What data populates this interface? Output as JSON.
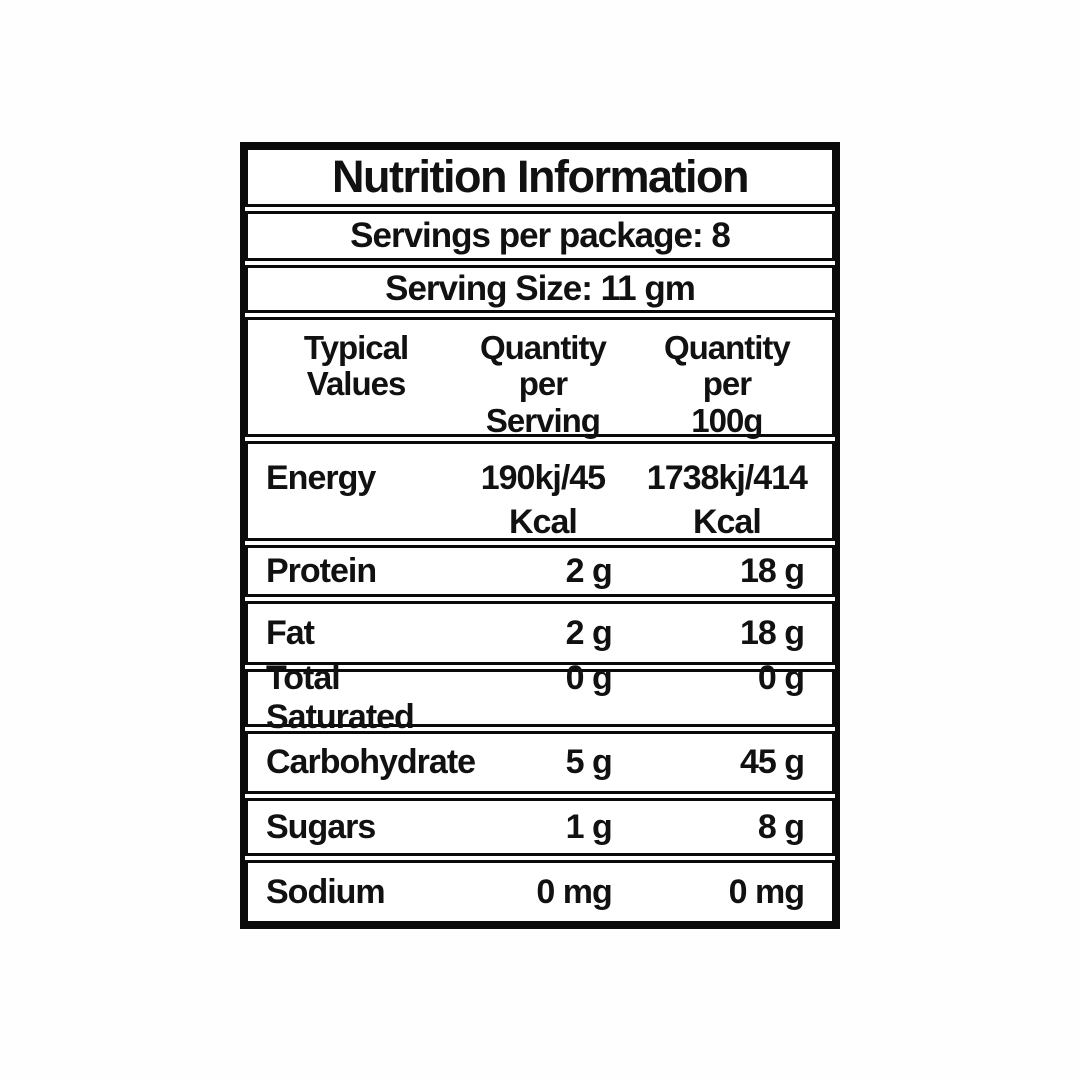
{
  "label": {
    "title": "Nutrition Information",
    "servings_per_package": "Servings per package: 8",
    "serving_size": "Serving Size: 11 gm",
    "header": {
      "col1_line1": "Typical",
      "col1_line2": "Values",
      "col2_line1": "Quantity",
      "col2_line2": "per",
      "col2_line3": "Serving",
      "col3_line1": "Quantity",
      "col3_line2": "per",
      "col3_line3": "100g"
    },
    "energy": {
      "name": "Energy",
      "per_serving_value": "190kj/45",
      "per_serving_unit": "Kcal",
      "per_100g_value": "1738kj/414",
      "per_100g_unit": "Kcal"
    },
    "rows": [
      {
        "name": "Protein",
        "per_serving": "2 g",
        "per_100g": "18 g"
      },
      {
        "name": "Fat",
        "per_serving": "2 g",
        "per_100g": "18 g"
      },
      {
        "name": "Total Saturated",
        "per_serving": "0 g",
        "per_100g": "0 g"
      },
      {
        "name": "Carbohydrate",
        "per_serving": "5 g",
        "per_100g": "45 g"
      },
      {
        "name": "Sugars",
        "per_serving": "1 g",
        "per_100g": "8 g"
      },
      {
        "name": "Sodium",
        "per_serving": "0 mg",
        "per_100g": "0 mg"
      }
    ],
    "colors": {
      "text": "#111111",
      "border": "#0a0a0a",
      "background": "#ffffff"
    }
  }
}
